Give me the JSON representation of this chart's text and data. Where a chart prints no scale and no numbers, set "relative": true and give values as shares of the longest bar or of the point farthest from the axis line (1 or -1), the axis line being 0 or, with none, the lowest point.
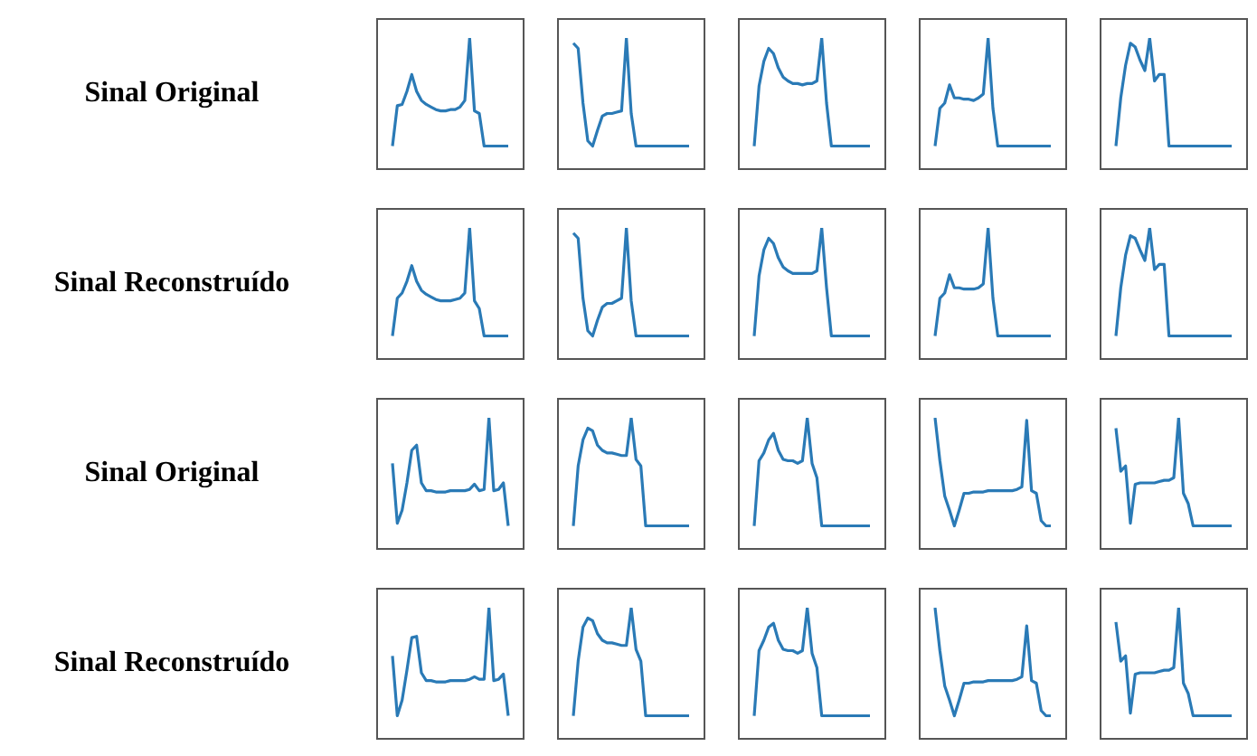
{
  "chart_data": [
    {
      "type": "line",
      "relative": true,
      "ylabel": "Sinal Original",
      "categories": [
        null,
        null,
        null,
        null,
        null,
        null,
        null,
        null,
        null,
        null,
        null,
        null,
        null,
        null,
        null,
        null,
        null,
        null,
        null,
        null,
        null,
        null,
        null,
        null,
        null
      ],
      "series": [
        {
          "color": "#2a7ab6",
          "values": [
            0.17,
            0.48,
            0.49,
            0.59,
            0.72,
            0.59,
            0.52,
            0.49,
            0.47,
            0.45,
            0.44,
            0.44,
            0.45,
            0.45,
            0.47,
            0.52,
            1,
            0.44,
            0.42,
            0.17,
            0.17,
            0.17,
            0.17,
            0.17,
            0.17
          ]
        }
      ]
    },
    {
      "type": "line",
      "relative": true,
      "categories": [
        null,
        null,
        null,
        null,
        null,
        null,
        null,
        null,
        null,
        null,
        null,
        null,
        null,
        null,
        null,
        null,
        null,
        null,
        null,
        null,
        null,
        null,
        null,
        null,
        null
      ],
      "series": [
        {
          "color": "#2a7ab6",
          "values": [
            0.96,
            0.92,
            0.5,
            0.21,
            0.17,
            0.29,
            0.4,
            0.42,
            0.42,
            0.43,
            0.44,
            1,
            0.42,
            0.17,
            0.17,
            0.17,
            0.17,
            0.17,
            0.17,
            0.17,
            0.17,
            0.17,
            0.17,
            0.17,
            0.17
          ]
        }
      ]
    },
    {
      "type": "line",
      "relative": true,
      "categories": [
        null,
        null,
        null,
        null,
        null,
        null,
        null,
        null,
        null,
        null,
        null,
        null,
        null,
        null,
        null,
        null,
        null,
        null,
        null,
        null,
        null,
        null,
        null,
        null,
        null
      ],
      "series": [
        {
          "color": "#2a7ab6",
          "values": [
            0.17,
            0.63,
            0.82,
            0.92,
            0.88,
            0.77,
            0.7,
            0.67,
            0.65,
            0.65,
            0.64,
            0.65,
            0.65,
            0.67,
            1,
            0.5,
            0.17,
            0.17,
            0.17,
            0.17,
            0.17,
            0.17,
            0.17,
            0.17,
            0.17
          ]
        }
      ]
    },
    {
      "type": "line",
      "relative": true,
      "categories": [
        null,
        null,
        null,
        null,
        null,
        null,
        null,
        null,
        null,
        null,
        null,
        null,
        null,
        null,
        null,
        null,
        null,
        null,
        null,
        null,
        null,
        null,
        null,
        null,
        null
      ],
      "series": [
        {
          "color": "#2a7ab6",
          "values": [
            0.17,
            0.46,
            0.5,
            0.64,
            0.54,
            0.54,
            0.53,
            0.53,
            0.52,
            0.54,
            0.57,
            1,
            0.46,
            0.17,
            0.17,
            0.17,
            0.17,
            0.17,
            0.17,
            0.17,
            0.17,
            0.17,
            0.17,
            0.17,
            0.17
          ]
        }
      ]
    },
    {
      "type": "line",
      "relative": true,
      "categories": [
        null,
        null,
        null,
        null,
        null,
        null,
        null,
        null,
        null,
        null,
        null,
        null,
        null,
        null,
        null,
        null,
        null,
        null,
        null,
        null,
        null,
        null,
        null,
        null,
        null
      ],
      "series": [
        {
          "color": "#2a7ab6",
          "values": [
            0.17,
            0.54,
            0.79,
            0.96,
            0.93,
            0.83,
            0.75,
            1,
            0.67,
            0.72,
            0.72,
            0.17,
            0.17,
            0.17,
            0.17,
            0.17,
            0.17,
            0.17,
            0.17,
            0.17,
            0.17,
            0.17,
            0.17,
            0.17,
            0.17
          ]
        }
      ]
    },
    {
      "type": "line",
      "relative": true,
      "ylabel": "Sinal Reconstruído",
      "categories": [
        null,
        null,
        null,
        null,
        null,
        null,
        null,
        null,
        null,
        null,
        null,
        null,
        null,
        null,
        null,
        null,
        null,
        null,
        null,
        null,
        null,
        null,
        null,
        null,
        null
      ],
      "series": [
        {
          "color": "#2a7ab6",
          "values": [
            0.17,
            0.46,
            0.5,
            0.59,
            0.71,
            0.59,
            0.52,
            0.49,
            0.47,
            0.45,
            0.44,
            0.44,
            0.44,
            0.45,
            0.46,
            0.5,
            1,
            0.44,
            0.38,
            0.17,
            0.17,
            0.17,
            0.17,
            0.17,
            0.17
          ]
        }
      ]
    },
    {
      "type": "line",
      "relative": true,
      "categories": [
        null,
        null,
        null,
        null,
        null,
        null,
        null,
        null,
        null,
        null,
        null,
        null,
        null,
        null,
        null,
        null,
        null,
        null,
        null,
        null,
        null,
        null,
        null,
        null,
        null
      ],
      "series": [
        {
          "color": "#2a7ab6",
          "values": [
            0.96,
            0.92,
            0.46,
            0.21,
            0.17,
            0.29,
            0.39,
            0.42,
            0.42,
            0.44,
            0.46,
            1,
            0.44,
            0.17,
            0.17,
            0.17,
            0.17,
            0.17,
            0.17,
            0.17,
            0.17,
            0.17,
            0.17,
            0.17,
            0.17
          ]
        }
      ]
    },
    {
      "type": "line",
      "relative": true,
      "categories": [
        null,
        null,
        null,
        null,
        null,
        null,
        null,
        null,
        null,
        null,
        null,
        null,
        null,
        null,
        null,
        null,
        null,
        null,
        null,
        null,
        null,
        null,
        null,
        null,
        null
      ],
      "series": [
        {
          "color": "#2a7ab6",
          "values": [
            0.17,
            0.63,
            0.83,
            0.92,
            0.88,
            0.77,
            0.7,
            0.67,
            0.65,
            0.65,
            0.65,
            0.65,
            0.65,
            0.67,
            1,
            0.54,
            0.17,
            0.17,
            0.17,
            0.17,
            0.17,
            0.17,
            0.17,
            0.17,
            0.17
          ]
        }
      ]
    },
    {
      "type": "line",
      "relative": true,
      "categories": [
        null,
        null,
        null,
        null,
        null,
        null,
        null,
        null,
        null,
        null,
        null,
        null,
        null,
        null,
        null,
        null,
        null,
        null,
        null,
        null,
        null,
        null,
        null,
        null,
        null
      ],
      "series": [
        {
          "color": "#2a7ab6",
          "values": [
            0.17,
            0.46,
            0.5,
            0.64,
            0.54,
            0.54,
            0.53,
            0.53,
            0.53,
            0.54,
            0.57,
            1,
            0.46,
            0.17,
            0.17,
            0.17,
            0.17,
            0.17,
            0.17,
            0.17,
            0.17,
            0.17,
            0.17,
            0.17,
            0.17
          ]
        }
      ]
    },
    {
      "type": "line",
      "relative": true,
      "categories": [
        null,
        null,
        null,
        null,
        null,
        null,
        null,
        null,
        null,
        null,
        null,
        null,
        null,
        null,
        null,
        null,
        null,
        null,
        null,
        null,
        null,
        null,
        null,
        null,
        null
      ],
      "series": [
        {
          "color": "#2a7ab6",
          "values": [
            0.17,
            0.54,
            0.79,
            0.94,
            0.92,
            0.83,
            0.75,
            1,
            0.68,
            0.72,
            0.72,
            0.17,
            0.17,
            0.17,
            0.17,
            0.17,
            0.17,
            0.17,
            0.17,
            0.17,
            0.17,
            0.17,
            0.17,
            0.17,
            0.17
          ]
        }
      ]
    },
    {
      "type": "line",
      "relative": true,
      "ylabel": "Sinal Original",
      "categories": [
        null,
        null,
        null,
        null,
        null,
        null,
        null,
        null,
        null,
        null,
        null,
        null,
        null,
        null,
        null,
        null,
        null,
        null,
        null,
        null,
        null,
        null,
        null,
        null,
        null
      ],
      "series": [
        {
          "color": "#2a7ab6",
          "values": [
            0.65,
            0.19,
            0.29,
            0.5,
            0.75,
            0.79,
            0.5,
            0.44,
            0.44,
            0.43,
            0.43,
            0.43,
            0.44,
            0.44,
            0.44,
            0.44,
            0.45,
            0.49,
            0.44,
            0.45,
            1,
            0.44,
            0.45,
            0.5,
            0.17
          ]
        }
      ]
    },
    {
      "type": "line",
      "relative": true,
      "categories": [
        null,
        null,
        null,
        null,
        null,
        null,
        null,
        null,
        null,
        null,
        null,
        null,
        null,
        null,
        null,
        null,
        null,
        null,
        null,
        null,
        null,
        null,
        null,
        null,
        null
      ],
      "series": [
        {
          "color": "#2a7ab6",
          "values": [
            0.17,
            0.63,
            0.83,
            0.92,
            0.9,
            0.79,
            0.75,
            0.73,
            0.73,
            0.72,
            0.71,
            0.71,
            1,
            0.68,
            0.63,
            0.17,
            0.17,
            0.17,
            0.17,
            0.17,
            0.17,
            0.17,
            0.17,
            0.17,
            0.17
          ]
        }
      ]
    },
    {
      "type": "line",
      "relative": true,
      "categories": [
        null,
        null,
        null,
        null,
        null,
        null,
        null,
        null,
        null,
        null,
        null,
        null,
        null,
        null,
        null,
        null,
        null,
        null,
        null,
        null,
        null,
        null,
        null,
        null,
        null
      ],
      "series": [
        {
          "color": "#2a7ab6",
          "values": [
            0.17,
            0.67,
            0.73,
            0.83,
            0.88,
            0.75,
            0.68,
            0.67,
            0.67,
            0.65,
            0.67,
            1,
            0.65,
            0.54,
            0.17,
            0.17,
            0.17,
            0.17,
            0.17,
            0.17,
            0.17,
            0.17,
            0.17,
            0.17,
            0.17
          ]
        }
      ]
    },
    {
      "type": "line",
      "relative": true,
      "categories": [
        null,
        null,
        null,
        null,
        null,
        null,
        null,
        null,
        null,
        null,
        null,
        null,
        null,
        null,
        null,
        null,
        null,
        null,
        null,
        null,
        null,
        null,
        null,
        null,
        null
      ],
      "series": [
        {
          "color": "#2a7ab6",
          "values": [
            1,
            0.67,
            0.4,
            0.29,
            0.17,
            0.29,
            0.42,
            0.42,
            0.43,
            0.43,
            0.43,
            0.44,
            0.44,
            0.44,
            0.44,
            0.44,
            0.44,
            0.45,
            0.47,
            0.98,
            0.44,
            0.42,
            0.21,
            0.17,
            0.17
          ]
        }
      ]
    },
    {
      "type": "line",
      "relative": true,
      "categories": [
        null,
        null,
        null,
        null,
        null,
        null,
        null,
        null,
        null,
        null,
        null,
        null,
        null,
        null,
        null,
        null,
        null,
        null,
        null,
        null,
        null,
        null,
        null,
        null,
        null
      ],
      "series": [
        {
          "color": "#2a7ab6",
          "values": [
            0.92,
            0.59,
            0.63,
            0.19,
            0.49,
            0.5,
            0.5,
            0.5,
            0.5,
            0.51,
            0.52,
            0.52,
            0.54,
            1,
            0.42,
            0.34,
            0.17,
            0.17,
            0.17,
            0.17,
            0.17,
            0.17,
            0.17,
            0.17,
            0.17
          ]
        }
      ]
    },
    {
      "type": "line",
      "relative": true,
      "ylabel": "Sinal Reconstruído",
      "categories": [
        null,
        null,
        null,
        null,
        null,
        null,
        null,
        null,
        null,
        null,
        null,
        null,
        null,
        null,
        null,
        null,
        null,
        null,
        null,
        null,
        null,
        null,
        null,
        null,
        null
      ],
      "series": [
        {
          "color": "#2a7ab6",
          "values": [
            0.63,
            0.17,
            0.29,
            0.52,
            0.77,
            0.78,
            0.5,
            0.44,
            0.44,
            0.43,
            0.43,
            0.43,
            0.44,
            0.44,
            0.44,
            0.44,
            0.45,
            0.47,
            0.45,
            0.45,
            1,
            0.44,
            0.45,
            0.49,
            0.17
          ]
        }
      ]
    },
    {
      "type": "line",
      "relative": true,
      "categories": [
        null,
        null,
        null,
        null,
        null,
        null,
        null,
        null,
        null,
        null,
        null,
        null,
        null,
        null,
        null,
        null,
        null,
        null,
        null,
        null,
        null,
        null,
        null,
        null,
        null
      ],
      "series": [
        {
          "color": "#2a7ab6",
          "values": [
            0.17,
            0.59,
            0.85,
            0.92,
            0.9,
            0.8,
            0.75,
            0.73,
            0.73,
            0.72,
            0.71,
            0.71,
            1,
            0.68,
            0.59,
            0.17,
            0.17,
            0.17,
            0.17,
            0.17,
            0.17,
            0.17,
            0.17,
            0.17,
            0.17
          ]
        }
      ]
    },
    {
      "type": "line",
      "relative": true,
      "categories": [
        null,
        null,
        null,
        null,
        null,
        null,
        null,
        null,
        null,
        null,
        null,
        null,
        null,
        null,
        null,
        null,
        null,
        null,
        null,
        null,
        null,
        null,
        null,
        null,
        null
      ],
      "series": [
        {
          "color": "#2a7ab6",
          "values": [
            0.17,
            0.67,
            0.75,
            0.85,
            0.88,
            0.75,
            0.68,
            0.67,
            0.67,
            0.65,
            0.67,
            1,
            0.65,
            0.54,
            0.17,
            0.17,
            0.17,
            0.17,
            0.17,
            0.17,
            0.17,
            0.17,
            0.17,
            0.17,
            0.17
          ]
        }
      ]
    },
    {
      "type": "line",
      "relative": true,
      "categories": [
        null,
        null,
        null,
        null,
        null,
        null,
        null,
        null,
        null,
        null,
        null,
        null,
        null,
        null,
        null,
        null,
        null,
        null,
        null,
        null,
        null,
        null,
        null,
        null,
        null
      ],
      "series": [
        {
          "color": "#2a7ab6",
          "values": [
            1,
            0.67,
            0.4,
            0.29,
            0.17,
            0.29,
            0.42,
            0.42,
            0.43,
            0.43,
            0.43,
            0.44,
            0.44,
            0.44,
            0.44,
            0.44,
            0.44,
            0.45,
            0.47,
            0.86,
            0.44,
            0.42,
            0.21,
            0.17,
            0.17
          ]
        }
      ]
    },
    {
      "type": "line",
      "relative": true,
      "categories": [
        null,
        null,
        null,
        null,
        null,
        null,
        null,
        null,
        null,
        null,
        null,
        null,
        null,
        null,
        null,
        null,
        null,
        null,
        null,
        null,
        null,
        null,
        null,
        null,
        null
      ],
      "series": [
        {
          "color": "#2a7ab6",
          "values": [
            0.89,
            0.59,
            0.63,
            0.19,
            0.49,
            0.5,
            0.5,
            0.5,
            0.5,
            0.51,
            0.52,
            0.52,
            0.54,
            1,
            0.42,
            0.34,
            0.17,
            0.17,
            0.17,
            0.17,
            0.17,
            0.17,
            0.17,
            0.17,
            0.17
          ]
        }
      ]
    }
  ]
}
